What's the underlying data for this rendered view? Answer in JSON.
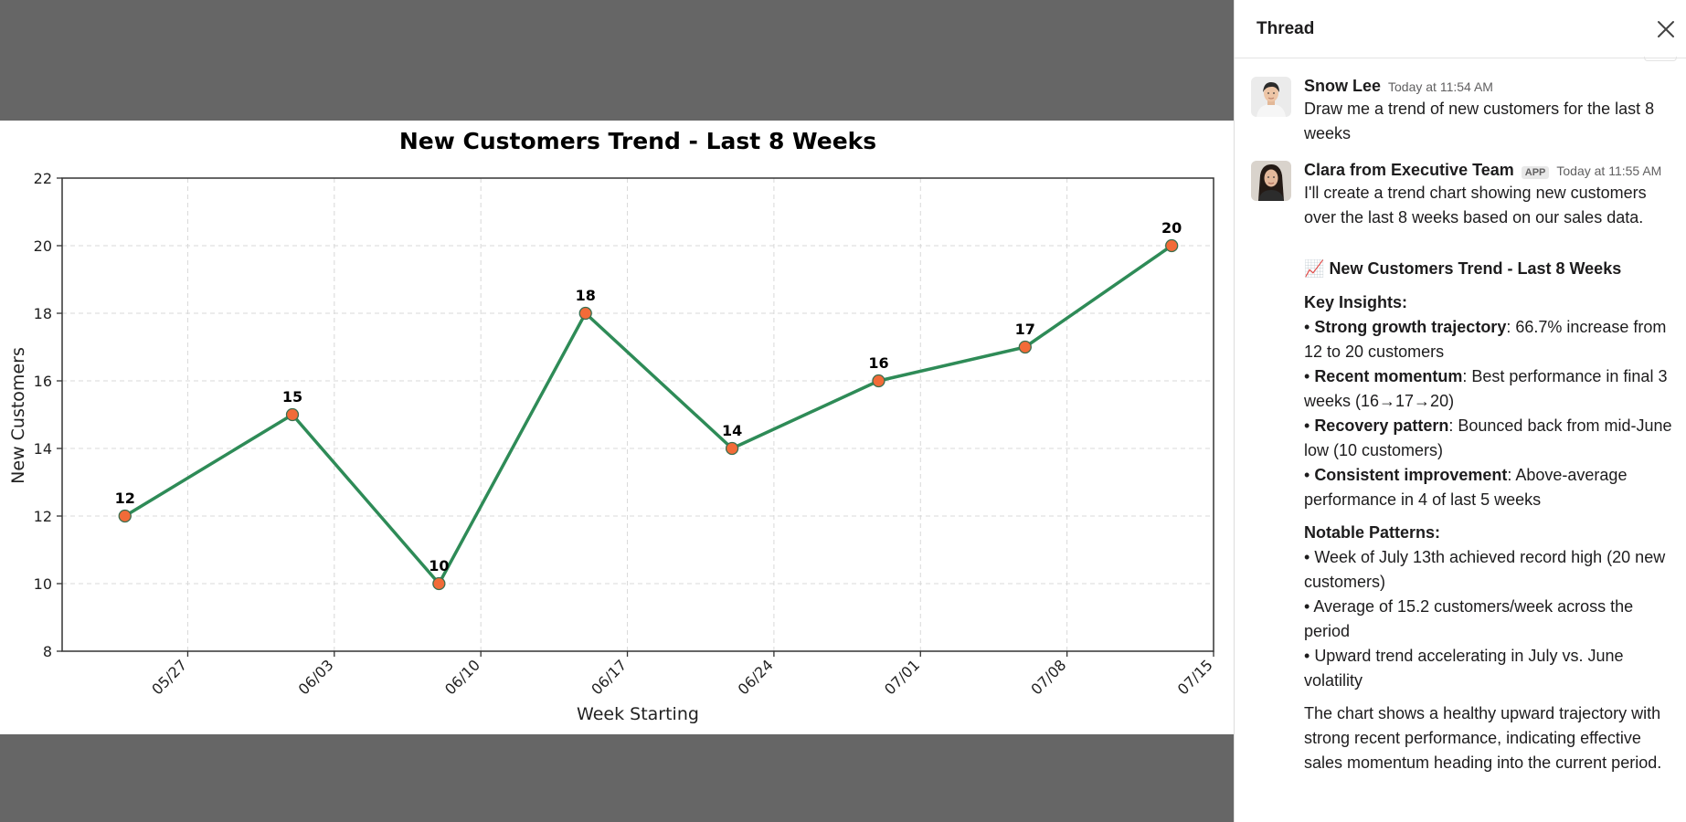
{
  "thread": {
    "title": "Thread",
    "close_label": "Close thread",
    "messages": [
      {
        "sender": "Snow Lee",
        "timestamp": "Today at 11:54 AM",
        "text": "Draw me a trend of new customers for the last 8 weeks"
      },
      {
        "sender": "Clara from Executive Team",
        "badge": "APP",
        "timestamp": "Today at 11:55 AM",
        "intro": "I'll create a trend chart showing new customers over the last 8 weeks based on our sales data.",
        "attachment_emoji": "📈",
        "attachment_title": "New Customers Trend - Last 8 Weeks",
        "key_insights_title": "Key Insights:",
        "key_insights": [
          {
            "label": "Strong growth trajectory",
            "text": ": 66.7% increase from 12 to 20 customers"
          },
          {
            "label": "Recent momentum",
            "text": ": Best performance in final 3 weeks (16→17→20)"
          },
          {
            "label": "Recovery pattern",
            "text": ": Bounced back from mid-June low (10 customers)"
          },
          {
            "label": "Consistent improvement",
            "text": ": Above-average performance in 4 of last 5 weeks"
          }
        ],
        "patterns_title": "Notable Patterns:",
        "patterns": [
          "Week of July 13th achieved record high (20 new customers)",
          "Average of 15.2 customers/week across the period",
          "Upward trend accelerating in July vs. June volatility"
        ],
        "summary": "The chart shows a healthy upward trajectory with strong recent performance, indicating effective sales momentum heading into the current period."
      }
    ]
  },
  "chart_data": {
    "type": "line",
    "title": "New Customers Trend - Last 8 Weeks",
    "xlabel": "Week Starting",
    "ylabel": "New Customers",
    "x": [
      "2025-05-24",
      "2025-06-01",
      "2025-06-08",
      "2025-06-15",
      "2025-06-22",
      "2025-06-29",
      "2025-07-06",
      "2025-07-13"
    ],
    "x_ticks": [
      "05/27",
      "06/03",
      "06/10",
      "06/17",
      "06/24",
      "07/01",
      "07/08",
      "07/15"
    ],
    "x_tick_dates": [
      "2025-05-27",
      "2025-06-03",
      "2025-06-10",
      "2025-06-17",
      "2025-06-24",
      "2025-07-01",
      "2025-07-08",
      "2025-07-15"
    ],
    "xlim": [
      "2025-05-21",
      "2025-07-15"
    ],
    "series": [
      {
        "values": [
          12,
          15,
          10,
          18,
          14,
          16,
          17,
          20
        ],
        "color": "#2e8b57",
        "marker_color": "#f26b38"
      }
    ],
    "ylim": [
      8,
      22
    ],
    "y_ticks": [
      8,
      10,
      12,
      14,
      16,
      18,
      20,
      22
    ],
    "grid": true,
    "data_labels": true
  }
}
